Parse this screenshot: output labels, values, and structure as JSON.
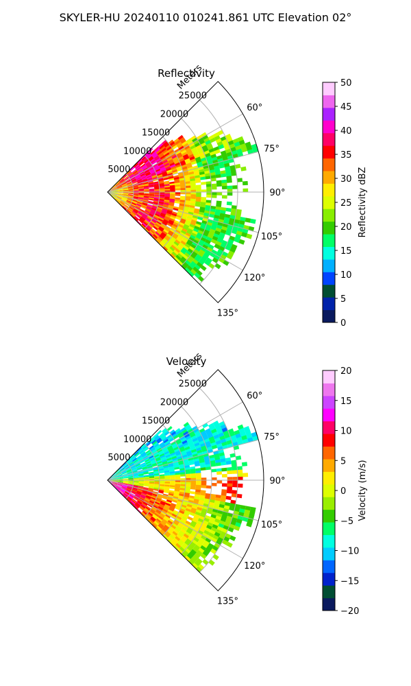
{
  "suptitle": "SKYLER-HU  20240110  010241.861 UTC Elevation 02°",
  "chart_data": [
    {
      "type": "heatmap",
      "projection": "polar-sector",
      "title": "Reflectivity",
      "range_label": "Meters",
      "range_ticks": [
        5000,
        10000,
        15000,
        20000,
        25000
      ],
      "range_max": 30000,
      "azimuth_range_deg": [
        45,
        135
      ],
      "azimuth_ticks": [
        "60°",
        "75°",
        "90°",
        "105°",
        "120°",
        "135°"
      ],
      "grid": true,
      "colorbar": {
        "label": "Reflectivity dBZ",
        "min": 0,
        "max": 50,
        "ticks": [
          0,
          5,
          10,
          15,
          20,
          25,
          30,
          35,
          40,
          45,
          50
        ],
        "stops": [
          "#0a1a5e",
          "#0022aa",
          "#004d33",
          "#0044ff",
          "#00b0ff",
          "#00ffe0",
          "#00ff66",
          "#33cc00",
          "#88ee00",
          "#ddff00",
          "#ffee00",
          "#ffaa00",
          "#ff6600",
          "#ff0000",
          "#ff0066",
          "#ff00cc",
          "#aa22ff",
          "#ee66ee",
          "#ffccff"
        ]
      }
    },
    {
      "type": "heatmap",
      "projection": "polar-sector",
      "title": "Velocity",
      "range_label": "Meters",
      "range_ticks": [
        5000,
        10000,
        15000,
        20000,
        25000
      ],
      "range_max": 30000,
      "azimuth_range_deg": [
        45,
        135
      ],
      "azimuth_ticks": [
        "60°",
        "75°",
        "90°",
        "105°",
        "120°",
        "135°"
      ],
      "grid": true,
      "colorbar": {
        "label": "Velocity (m/s)",
        "min": -20,
        "max": 20,
        "ticks": [
          -20,
          -15,
          -10,
          -5,
          0,
          5,
          10,
          15,
          20
        ],
        "stops": [
          "#0a1a5e",
          "#004d33",
          "#0022cc",
          "#0066ff",
          "#00ccff",
          "#00ffe0",
          "#00ff66",
          "#33cc00",
          "#99ee00",
          "#ddff00",
          "#ffee00",
          "#ffaa00",
          "#ff6600",
          "#ff0000",
          "#ff0066",
          "#ff00ff",
          "#cc44ff",
          "#ee77ee",
          "#ffccff"
        ]
      }
    }
  ]
}
